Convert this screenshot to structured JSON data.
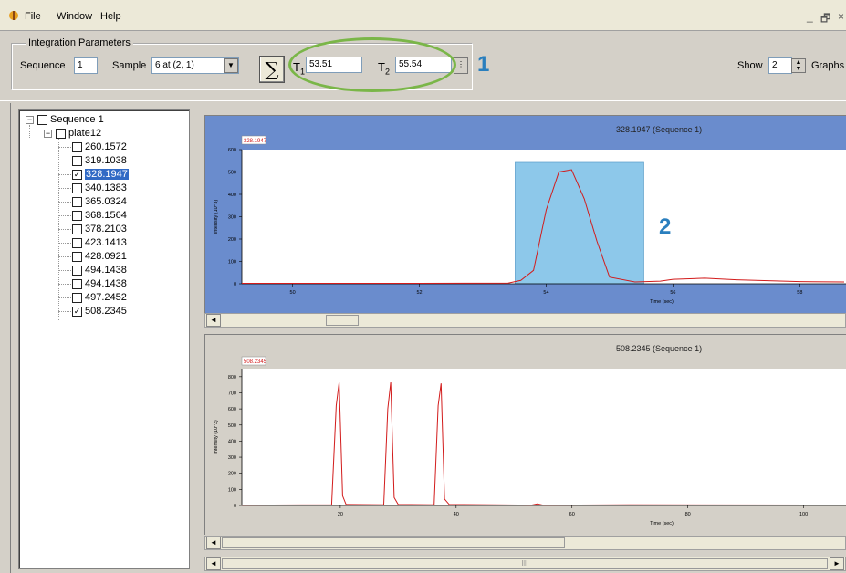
{
  "menu": {
    "file": "File",
    "window": "Window",
    "help": "Help"
  },
  "window_controls": {
    "minimize": "_",
    "restore": "🗗",
    "close": "×"
  },
  "params": {
    "group_title": "Integration Parameters",
    "sequence_label": "Sequence",
    "sequence_value": "1",
    "sample_label": "Sample",
    "sample_value": "6  at  (2, 1)",
    "sum_symbol": "∑",
    "t1_label": "T",
    "t1_sub": "1",
    "t1_value": "53.51",
    "t2_label": "T",
    "t2_sub": "2",
    "t2_value": "55.54"
  },
  "annotations": {
    "one": "1",
    "two": "2"
  },
  "show": {
    "label": "Show",
    "value": "2",
    "suffix": "Graphs"
  },
  "tree": {
    "root": "Sequence 1",
    "plate": "plate12",
    "items": [
      {
        "label": "260.1572",
        "checked": false
      },
      {
        "label": "319.1038",
        "checked": false
      },
      {
        "label": "328.1947",
        "checked": true,
        "selected": true
      },
      {
        "label": "340.1383",
        "checked": false
      },
      {
        "label": "365.0324",
        "checked": false
      },
      {
        "label": "368.1564",
        "checked": false
      },
      {
        "label": "378.2103",
        "checked": false
      },
      {
        "label": "423.1413",
        "checked": false
      },
      {
        "label": "428.0921",
        "checked": false
      },
      {
        "label": "494.1438",
        "checked": false
      },
      {
        "label": "494.1438",
        "checked": false
      },
      {
        "label": "497.2452",
        "checked": false
      },
      {
        "label": "508.2345",
        "checked": true
      }
    ]
  },
  "chart_data": [
    {
      "type": "line",
      "title": "328.1947 (Sequence 1)",
      "legend": "328.1947",
      "xlabel": "Time (sec)",
      "ylabel": "Intensity (10^3)",
      "xlim": [
        49.2,
        58.7
      ],
      "ylim": [
        0,
        600
      ],
      "xticks": [
        50,
        52,
        54,
        56,
        58
      ],
      "yticks": [
        0,
        100,
        200,
        300,
        400,
        500,
        600
      ],
      "integration_window": [
        53.51,
        55.54
      ],
      "x": [
        49.2,
        52.0,
        53.4,
        53.6,
        53.8,
        54.0,
        54.2,
        54.4,
        54.6,
        54.8,
        55.0,
        55.4,
        55.8,
        56.0,
        56.5,
        57.0,
        58.0,
        58.7
      ],
      "y": [
        2,
        2,
        3,
        15,
        60,
        330,
        500,
        510,
        380,
        190,
        30,
        8,
        12,
        20,
        25,
        18,
        10,
        8
      ],
      "color": "#d21b1b",
      "header_color": "#6a8ccd",
      "highlight_color": "#8dc8ea"
    },
    {
      "type": "line",
      "title": "508.2345 (Sequence 1)",
      "legend": "508.2345",
      "xlabel": "Time (sec)",
      "ylabel": "Intensity (10^3)",
      "xlim": [
        3,
        107
      ],
      "ylim": [
        0,
        850
      ],
      "xticks": [
        20,
        40,
        60,
        80,
        100
      ],
      "yticks": [
        0,
        100,
        200,
        300,
        400,
        500,
        600,
        700,
        800
      ],
      "x": [
        3,
        18.5,
        19.3,
        19.8,
        20.4,
        21,
        27.5,
        28.2,
        28.7,
        29.3,
        30,
        36.2,
        36.9,
        37.4,
        38,
        38.8,
        53,
        54,
        55,
        70,
        107
      ],
      "y": [
        2,
        4,
        620,
        765,
        60,
        6,
        4,
        600,
        765,
        50,
        6,
        4,
        620,
        758,
        40,
        6,
        2,
        10,
        2,
        4,
        3
      ],
      "color": "#d21b1b",
      "header_color": "#d4d0c8"
    }
  ],
  "scroll": {
    "left": "◄",
    "right": "►",
    "mid": "III"
  }
}
